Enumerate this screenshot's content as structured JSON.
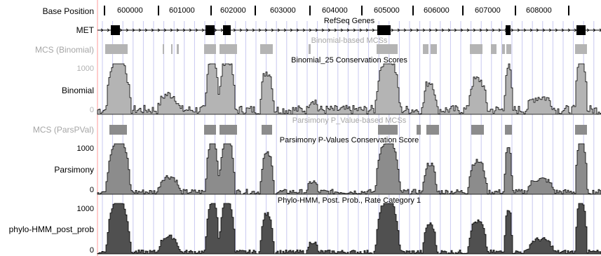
{
  "base_position": {
    "label": "Base Position",
    "ticks": [
      "600000",
      "601000",
      "602000",
      "603000",
      "604000",
      "605000",
      "606000",
      "607000",
      "608000"
    ]
  },
  "tracks": {
    "refseq": {
      "label": "MET",
      "title": "RefSeq Genes"
    },
    "mcs_binomial": {
      "label": "MCS (Binomial)",
      "title": "Binomial-based MCSs"
    },
    "binomial": {
      "label": "Binomial",
      "title": "Binomial_25 Conservation Scores",
      "scale_max": "1000",
      "scale_min": "0"
    },
    "mcs_parspval": {
      "label": "MCS (ParsPVal)",
      "title": "Parsimony P_Value-based MCSs"
    },
    "parsimony": {
      "label": "Parsimony",
      "title": "Parsimony P-Values Conservation Score",
      "scale_max": "1000",
      "scale_min": "0"
    },
    "phylo": {
      "label": "phylo-HMM_post_prob",
      "title": "Phylo-HMM, Post. Prob., Rate Category 1",
      "scale_max": "1000",
      "scale_min": "0"
    }
  },
  "colors": {
    "binomial": "#b4b4b4",
    "parsimony": "#8c8c8c",
    "phylo": "#505050",
    "mcs_binomial": "#b4b4b4",
    "mcs_parspval": "#8c8c8c",
    "guide": "#c8c8f0",
    "left_border": "#ff9a9a"
  }
}
